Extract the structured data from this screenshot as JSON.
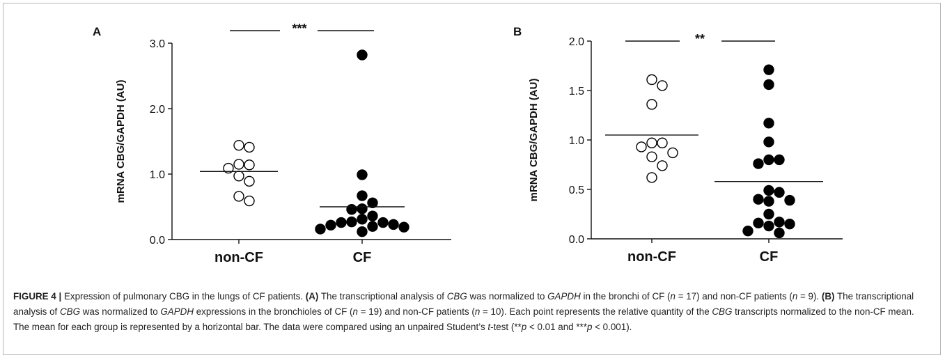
{
  "chart_data": [
    {
      "type": "scatter",
      "panel_label": "A",
      "ylabel": "mRNA CBG/GAPDH (AU)",
      "ylim": [
        0,
        3.0
      ],
      "yticks": [
        "0.0",
        "1.0",
        "2.0",
        "3.0"
      ],
      "categories": [
        "non-CF",
        "CF"
      ],
      "series": [
        {
          "name": "non-CF",
          "marker": "open-circle",
          "values": [
            1.44,
            1.41,
            1.15,
            1.14,
            1.09,
            0.97,
            0.89,
            0.66,
            0.59
          ],
          "mean": 1.04
        },
        {
          "name": "CF",
          "marker": "filled-circle",
          "values": [
            2.82,
            0.99,
            0.67,
            0.56,
            0.47,
            0.46,
            0.36,
            0.31,
            0.27,
            0.26,
            0.26,
            0.23,
            0.22,
            0.2,
            0.19,
            0.16,
            0.12
          ],
          "mean": 0.5
        }
      ],
      "significance": "***"
    },
    {
      "type": "scatter",
      "panel_label": "B",
      "ylabel": "mRNA CBG/GAPDH (AU)",
      "ylim": [
        0,
        2.0
      ],
      "yticks": [
        "0.0",
        "0.5",
        "1.0",
        "1.5",
        "2.0"
      ],
      "categories": [
        "non-CF",
        "CF"
      ],
      "series": [
        {
          "name": "non-CF",
          "marker": "open-circle",
          "values": [
            1.61,
            1.55,
            1.36,
            0.97,
            0.97,
            0.93,
            0.87,
            0.83,
            0.74,
            0.62
          ],
          "mean": 1.05
        },
        {
          "name": "CF",
          "marker": "filled-circle",
          "values": [
            1.71,
            1.56,
            1.17,
            0.98,
            0.8,
            0.8,
            0.76,
            0.49,
            0.47,
            0.4,
            0.39,
            0.38,
            0.25,
            0.17,
            0.16,
            0.15,
            0.13,
            0.08,
            0.06
          ],
          "mean": 0.58
        }
      ],
      "significance": "**"
    }
  ],
  "caption": {
    "label": "FIGURE 4 |",
    "text_1": " Expression of pulmonary CBG in the lungs of CF patients. ",
    "a_label": "(A)",
    "a_text_1": " The transcriptional analysis of ",
    "a_gene_1": "CBG",
    "a_text_2": " was normalized to ",
    "a_gene_2": "GAPDH",
    "a_text_3": " in the bronchi of CF (",
    "a_n1": "n",
    "a_text_4": " = 17) and non-CF patients (",
    "a_n2": "n",
    "a_text_5": " = 9). ",
    "b_label": "(B)",
    "b_text_1": " The transcriptional analysis of ",
    "b_gene_1": "CBG",
    "b_text_2": " was normalized to ",
    "b_gene_2": "GAPDH",
    "b_text_3": " expressions in the bronchioles of CF (",
    "b_n1": "n",
    "b_text_4": " = 19) and non-CF patients (",
    "b_n2": "n",
    "b_text_5": " = 10). Each point represents the relative quantity of the ",
    "b_gene_3": "CBG",
    "b_text_6": " transcripts normalized to the non-CF mean. The mean for each group is represented by a horizontal bar. The data were compared using an unpaired Student’s ",
    "t": "t",
    "text_end_1": "-test (**",
    "p1": "p",
    "text_end_2": " < 0.01 and ***",
    "p2": "p",
    "text_end_3": " < 0.001)."
  }
}
